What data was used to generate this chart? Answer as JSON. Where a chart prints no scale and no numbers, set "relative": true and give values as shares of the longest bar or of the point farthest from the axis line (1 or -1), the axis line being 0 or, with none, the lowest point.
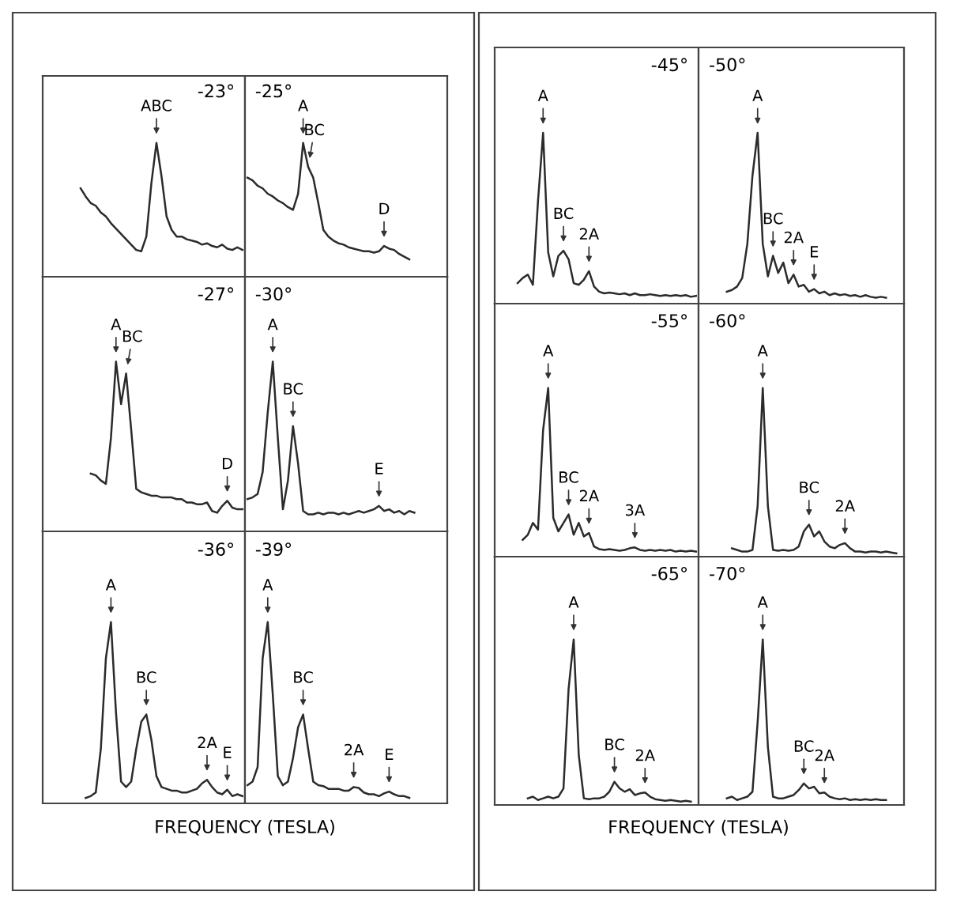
{
  "chart_data": [
    {
      "type": "line",
      "relative": true,
      "title": "-23°",
      "categories": [
        null,
        null,
        null,
        null,
        null,
        null,
        null,
        null,
        null,
        null,
        null,
        null,
        null,
        null,
        null,
        null,
        null,
        null,
        null,
        null,
        null,
        null,
        null,
        null,
        null,
        null,
        null,
        null,
        null,
        null,
        null,
        null,
        null,
        null,
        null,
        null,
        null,
        null,
        null,
        null
      ],
      "series": [
        {
          "color": "#2b2b2b",
          "values": [
            null,
            null,
            null,
            null,
            null,
            null,
            null,
            0.66,
            0.6,
            0.55,
            0.53,
            0.48,
            0.45,
            0.4,
            0.36,
            0.32,
            0.28,
            0.24,
            0.2,
            0.19,
            0.3,
            0.7,
            1,
            0.75,
            0.45,
            0.35,
            0.3,
            0.3,
            0.28,
            0.27,
            0.26,
            0.24,
            0.25,
            0.23,
            0.22,
            0.24,
            0.21,
            0.2,
            0.22,
            0.2
          ]
        }
      ],
      "annotations": [
        {
          "text": "ABC",
          "y": 1
        }
      ]
    },
    {
      "type": "line",
      "relative": true,
      "title": "-25°",
      "categories": [
        null,
        null,
        null,
        null,
        null,
        null,
        null,
        null,
        null,
        null,
        null,
        null,
        null,
        null,
        null,
        null,
        null,
        null,
        null,
        null,
        null,
        null,
        null,
        null,
        null,
        null,
        null,
        null,
        null,
        null,
        null,
        null,
        null,
        null,
        null,
        null,
        null,
        null,
        null,
        null
      ],
      "series": [
        {
          "color": "#2b2b2b",
          "values": [
            0.74,
            0.72,
            0.68,
            0.66,
            0.62,
            0.6,
            0.57,
            0.55,
            0.52,
            0.5,
            0.62,
            1,
            0.82,
            0.74,
            0.55,
            0.35,
            0.3,
            0.27,
            0.25,
            0.24,
            0.22,
            0.21,
            0.2,
            0.19,
            0.19,
            0.18,
            0.19,
            0.23,
            0.21,
            0.2,
            0.17,
            0.15,
            0.13,
            null,
            null,
            null,
            null,
            null,
            null,
            null
          ]
        }
      ],
      "annotations": [
        {
          "text": "A",
          "y": 1
        },
        {
          "text": "BC",
          "y": 0.82
        },
        {
          "text": "D",
          "y": 0.23
        }
      ]
    },
    {
      "type": "line",
      "relative": true,
      "title": "-27°",
      "categories": [
        null,
        null,
        null,
        null,
        null,
        null,
        null,
        null,
        null,
        null,
        null,
        null,
        null,
        null,
        null,
        null,
        null,
        null,
        null,
        null,
        null,
        null,
        null,
        null,
        null,
        null,
        null,
        null,
        null,
        null,
        null,
        null,
        null,
        null,
        null,
        null,
        null,
        null,
        null,
        null
      ],
      "series": [
        {
          "color": "#2b2b2b",
          "values": [
            null,
            null,
            null,
            null,
            null,
            null,
            null,
            null,
            null,
            0.34,
            0.33,
            0.3,
            0.28,
            0.55,
            1,
            0.75,
            0.93,
            0.6,
            0.25,
            0.23,
            0.22,
            0.21,
            0.21,
            0.2,
            0.2,
            0.2,
            0.19,
            0.19,
            0.17,
            0.17,
            0.16,
            0.16,
            0.17,
            0.12,
            0.11,
            0.15,
            0.18,
            0.14,
            0.13,
            0.13
          ]
        }
      ],
      "annotations": [
        {
          "text": "A",
          "y": 1
        },
        {
          "text": "BC",
          "y": 0.93
        },
        {
          "text": "D",
          "y": 0.18
        }
      ]
    },
    {
      "type": "line",
      "relative": true,
      "title": "-30°",
      "categories": [
        null,
        null,
        null,
        null,
        null,
        null,
        null,
        null,
        null,
        null,
        null,
        null,
        null,
        null,
        null,
        null,
        null,
        null,
        null,
        null,
        null,
        null,
        null,
        null,
        null,
        null,
        null,
        null,
        null,
        null,
        null,
        null,
        null,
        null,
        null,
        null,
        null,
        null,
        null,
        null
      ],
      "series": [
        {
          "color": "#2b2b2b",
          "values": [
            0.19,
            0.2,
            0.22,
            0.35,
            0.7,
            1,
            0.55,
            0.13,
            0.3,
            0.62,
            0.4,
            0.12,
            0.1,
            0.1,
            0.11,
            0.1,
            0.11,
            0.11,
            0.1,
            0.11,
            0.1,
            0.11,
            0.12,
            0.11,
            0.12,
            0.13,
            0.15,
            0.12,
            0.13,
            0.11,
            0.12,
            0.1,
            0.12,
            0.11,
            null,
            null,
            null,
            null,
            null,
            null
          ]
        }
      ],
      "annotations": [
        {
          "text": "A",
          "y": 1
        },
        {
          "text": "BC",
          "y": 0.62
        },
        {
          "text": "E",
          "y": 0.15
        }
      ]
    },
    {
      "type": "line",
      "relative": true,
      "title": "-36°",
      "xlabel": "FREQUENCY (TESLA)",
      "categories": [
        null,
        null,
        null,
        null,
        null,
        null,
        null,
        null,
        null,
        null,
        null,
        null,
        null,
        null,
        null,
        null,
        null,
        null,
        null,
        null,
        null,
        null,
        null,
        null,
        null,
        null,
        null,
        null,
        null,
        null,
        null,
        null,
        null,
        null,
        null,
        null,
        null,
        null,
        null,
        null
      ],
      "series": [
        {
          "color": "#2b2b2b",
          "values": [
            null,
            null,
            null,
            null,
            null,
            null,
            null,
            null,
            0.03,
            0.04,
            0.06,
            0.3,
            0.8,
            1,
            0.5,
            0.12,
            0.09,
            0.12,
            0.3,
            0.45,
            0.49,
            0.35,
            0.15,
            0.09,
            0.08,
            0.07,
            0.07,
            0.06,
            0.06,
            0.07,
            0.08,
            0.11,
            0.13,
            0.09,
            0.06,
            0.05,
            0.075,
            0.04,
            0.05,
            0.04
          ]
        }
      ],
      "annotations": [
        {
          "text": "A",
          "y": 1
        },
        {
          "text": "BC",
          "y": 0.49
        },
        {
          "text": "2A",
          "y": 0.13
        },
        {
          "text": "E",
          "y": 0.075
        }
      ]
    },
    {
      "type": "line",
      "relative": true,
      "title": "-39°",
      "categories": [
        null,
        null,
        null,
        null,
        null,
        null,
        null,
        null,
        null,
        null,
        null,
        null,
        null,
        null,
        null,
        null,
        null,
        null,
        null,
        null,
        null,
        null,
        null,
        null,
        null,
        null,
        null,
        null,
        null,
        null,
        null,
        null,
        null,
        null,
        null,
        null,
        null,
        null,
        null,
        null
      ],
      "series": [
        {
          "color": "#2b2b2b",
          "values": [
            0.1,
            0.12,
            0.2,
            0.8,
            1,
            0.6,
            0.15,
            0.1,
            0.12,
            0.25,
            0.42,
            0.49,
            0.3,
            0.12,
            0.1,
            0.095,
            0.08,
            0.08,
            0.08,
            0.07,
            0.07,
            0.09,
            0.085,
            0.06,
            0.05,
            0.05,
            0.04,
            0.055,
            0.065,
            0.05,
            0.04,
            0.04,
            0.03,
            null,
            null,
            null,
            null,
            null,
            null,
            null
          ]
        }
      ],
      "annotations": [
        {
          "text": "A",
          "y": 1
        },
        {
          "text": "BC",
          "y": 0.49
        },
        {
          "text": "2A",
          "y": 0.09
        },
        {
          "text": "E",
          "y": 0.065
        }
      ]
    },
    {
      "type": "line",
      "relative": true,
      "title": "-45°",
      "categories": [
        null,
        null,
        null,
        null,
        null,
        null,
        null,
        null,
        null,
        null,
        null,
        null,
        null,
        null,
        null,
        null,
        null,
        null,
        null,
        null,
        null,
        null,
        null,
        null,
        null,
        null,
        null,
        null,
        null,
        null,
        null,
        null,
        null,
        null,
        null,
        null,
        null,
        null,
        null,
        null
      ],
      "series": [
        {
          "color": "#2b2b2b",
          "values": [
            null,
            null,
            null,
            null,
            0.12,
            0.15,
            0.17,
            0.11,
            0.6,
            1,
            0.3,
            0.16,
            0.28,
            0.31,
            0.26,
            0.12,
            0.11,
            0.14,
            0.19,
            0.1,
            0.07,
            0.06,
            0.065,
            0.06,
            0.055,
            0.06,
            0.05,
            0.06,
            0.05,
            0.05,
            0.055,
            0.05,
            0.045,
            0.05,
            0.045,
            0.05,
            0.045,
            0.05,
            0.04,
            0.045
          ]
        }
      ],
      "annotations": [
        {
          "text": "A",
          "y": 1
        },
        {
          "text": "BC",
          "y": 0.31
        },
        {
          "text": "2A",
          "y": 0.19
        }
      ]
    },
    {
      "type": "line",
      "relative": true,
      "title": "-50°",
      "categories": [
        null,
        null,
        null,
        null,
        null,
        null,
        null,
        null,
        null,
        null,
        null,
        null,
        null,
        null,
        null,
        null,
        null,
        null,
        null,
        null,
        null,
        null,
        null,
        null,
        null,
        null,
        null,
        null,
        null,
        null,
        null,
        null,
        null,
        null,
        null,
        null,
        null,
        null,
        null,
        null
      ],
      "series": [
        {
          "color": "#2b2b2b",
          "values": [
            null,
            null,
            null,
            null,
            null,
            0.07,
            0.08,
            0.1,
            0.15,
            0.35,
            0.75,
            1,
            0.35,
            0.16,
            0.28,
            0.18,
            0.24,
            0.12,
            0.17,
            0.1,
            0.11,
            0.07,
            0.085,
            0.06,
            0.07,
            0.05,
            0.06,
            0.05,
            0.055,
            0.045,
            0.05,
            0.04,
            0.05,
            0.04,
            0.035,
            0.04,
            0.035,
            null,
            null,
            null
          ]
        }
      ],
      "annotations": [
        {
          "text": "A",
          "y": 1
        },
        {
          "text": "BC",
          "y": 0.28
        },
        {
          "text": "2A",
          "y": 0.17
        },
        {
          "text": "E",
          "y": 0.085
        }
      ]
    },
    {
      "type": "line",
      "relative": true,
      "title": "-55°",
      "categories": [
        null,
        null,
        null,
        null,
        null,
        null,
        null,
        null,
        null,
        null,
        null,
        null,
        null,
        null,
        null,
        null,
        null,
        null,
        null,
        null,
        null,
        null,
        null,
        null,
        null,
        null,
        null,
        null,
        null,
        null,
        null,
        null,
        null,
        null,
        null,
        null,
        null,
        null,
        null,
        null
      ],
      "series": [
        {
          "color": "#2b2b2b",
          "values": [
            null,
            null,
            null,
            null,
            null,
            0.1,
            0.13,
            0.2,
            0.16,
            0.75,
            1,
            0.23,
            0.15,
            0.2,
            0.25,
            0.13,
            0.2,
            0.12,
            0.14,
            0.06,
            0.045,
            0.04,
            0.045,
            0.04,
            0.035,
            0.04,
            0.05,
            0.055,
            0.04,
            0.035,
            0.04,
            0.035,
            0.04,
            0.035,
            0.04,
            0.03,
            0.035,
            0.03,
            0.035,
            0.03
          ]
        }
      ],
      "annotations": [
        {
          "text": "A",
          "y": 1
        },
        {
          "text": "BC",
          "y": 0.25
        },
        {
          "text": "2A",
          "y": 0.14
        },
        {
          "text": "3A",
          "y": 0.055
        }
      ]
    },
    {
      "type": "line",
      "relative": true,
      "title": "-60°",
      "categories": [
        null,
        null,
        null,
        null,
        null,
        null,
        null,
        null,
        null,
        null,
        null,
        null,
        null,
        null,
        null,
        null,
        null,
        null,
        null,
        null,
        null,
        null,
        null,
        null,
        null,
        null,
        null,
        null,
        null,
        null,
        null,
        null,
        null,
        null,
        null,
        null,
        null,
        null,
        null,
        null
      ],
      "series": [
        {
          "color": "#2b2b2b",
          "values": [
            null,
            null,
            null,
            null,
            null,
            null,
            0.05,
            0.04,
            0.03,
            0.03,
            0.04,
            0.3,
            1,
            0.3,
            0.04,
            0.035,
            0.04,
            0.035,
            0.04,
            0.06,
            0.15,
            0.19,
            0.12,
            0.15,
            0.09,
            0.06,
            0.05,
            0.07,
            0.08,
            0.05,
            0.03,
            0.03,
            0.025,
            0.03,
            0.03,
            0.025,
            0.03,
            0.025,
            0.02,
            null
          ]
        }
      ],
      "annotations": [
        {
          "text": "A",
          "y": 1
        },
        {
          "text": "BC",
          "y": 0.19
        },
        {
          "text": "2A",
          "y": 0.08
        }
      ]
    },
    {
      "type": "line",
      "relative": true,
      "title": "-65°",
      "xlabel": "FREQUENCY (TESLA)",
      "categories": [
        null,
        null,
        null,
        null,
        null,
        null,
        null,
        null,
        null,
        null,
        null,
        null,
        null,
        null,
        null,
        null,
        null,
        null,
        null,
        null,
        null,
        null,
        null,
        null,
        null,
        null,
        null,
        null,
        null,
        null,
        null,
        null,
        null,
        null,
        null,
        null,
        null,
        null,
        null,
        null
      ],
      "series": [
        {
          "color": "#2b2b2b",
          "values": [
            null,
            null,
            null,
            null,
            null,
            null,
            0.04,
            0.05,
            0.03,
            0.04,
            0.05,
            0.04,
            0.05,
            0.1,
            0.7,
            1,
            0.3,
            0.04,
            0.035,
            0.04,
            0.04,
            0.05,
            0.08,
            0.14,
            0.1,
            0.08,
            0.095,
            0.06,
            0.07,
            0.075,
            0.05,
            0.035,
            0.03,
            0.025,
            0.03,
            0.025,
            0.02,
            0.025,
            0.02,
            null
          ]
        }
      ],
      "annotations": [
        {
          "text": "A",
          "y": 1
        },
        {
          "text": "BC",
          "y": 0.14
        },
        {
          "text": "2A",
          "y": 0.075
        }
      ]
    },
    {
      "type": "line",
      "relative": true,
      "title": "-70°",
      "categories": [
        null,
        null,
        null,
        null,
        null,
        null,
        null,
        null,
        null,
        null,
        null,
        null,
        null,
        null,
        null,
        null,
        null,
        null,
        null,
        null,
        null,
        null,
        null,
        null,
        null,
        null,
        null,
        null,
        null,
        null,
        null,
        null,
        null,
        null,
        null,
        null,
        null,
        null,
        null,
        null
      ],
      "series": [
        {
          "color": "#2b2b2b",
          "values": [
            null,
            null,
            null,
            null,
            null,
            0.04,
            0.05,
            0.03,
            0.04,
            0.05,
            0.08,
            0.5,
            1,
            0.35,
            0.05,
            0.04,
            0.04,
            0.05,
            0.06,
            0.09,
            0.13,
            0.1,
            0.11,
            0.07,
            0.075,
            0.05,
            0.04,
            0.035,
            0.04,
            0.03,
            0.035,
            0.03,
            0.035,
            0.03,
            0.035,
            0.03,
            0.03,
            null,
            null,
            null
          ]
        }
      ],
      "annotations": [
        {
          "text": "A",
          "y": 1
        },
        {
          "text": "BC",
          "y": 0.13
        },
        {
          "text": "2A",
          "y": 0.075
        }
      ]
    }
  ]
}
